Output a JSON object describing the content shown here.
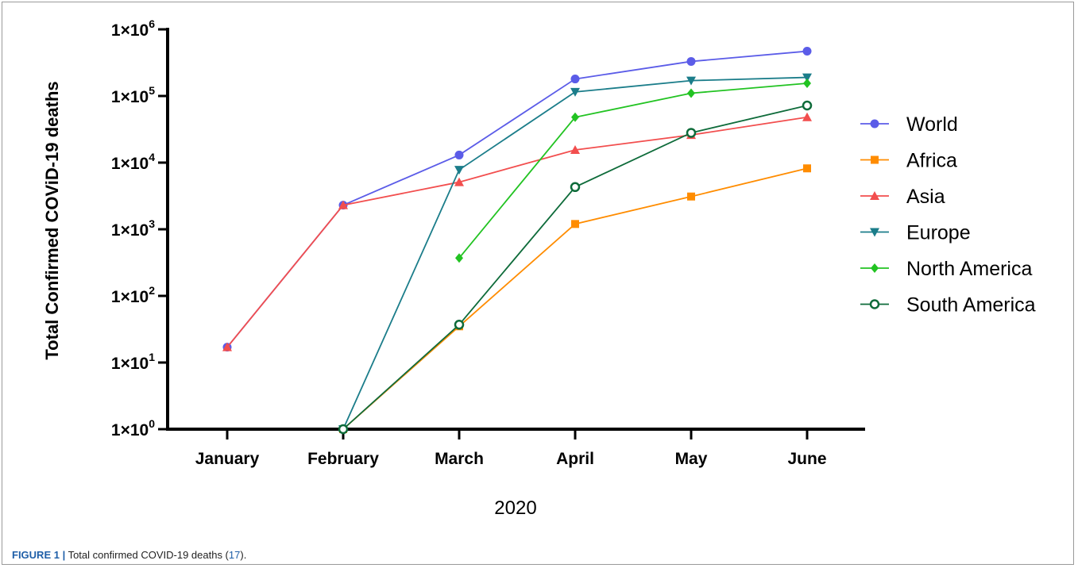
{
  "caption": {
    "label": "FIGURE 1 |",
    "text_before": " Total confirmed COVID-19 deaths (",
    "reference": "17",
    "text_after": ")."
  },
  "chart_data": {
    "type": "line",
    "title": "",
    "xlabel": "2020",
    "ylabel": "Total Confirmed COViD-19 deaths",
    "y_scale": "log",
    "ylim": [
      1,
      1000000
    ],
    "y_ticks": [
      {
        "value": 1,
        "base": "1×10",
        "exp": "0"
      },
      {
        "value": 10,
        "base": "1×10",
        "exp": "1"
      },
      {
        "value": 100,
        "base": "1×10",
        "exp": "2"
      },
      {
        "value": 1000,
        "base": "1×10",
        "exp": "3"
      },
      {
        "value": 10000,
        "base": "1×10",
        "exp": "4"
      },
      {
        "value": 100000,
        "base": "1×10",
        "exp": "5"
      },
      {
        "value": 1000000,
        "base": "1×10",
        "exp": "6"
      }
    ],
    "categories": [
      "January",
      "February",
      "March",
      "April",
      "May",
      "June"
    ],
    "legend_position": "right",
    "grid": false,
    "series": [
      {
        "name": "World",
        "color": "#5b5ce8",
        "marker": "circle",
        "values": [
          17,
          2300,
          13000,
          180000,
          330000,
          470000
        ]
      },
      {
        "name": "Africa",
        "color": "#ff8c00",
        "marker": "square",
        "values": [
          null,
          1,
          35,
          1200,
          3100,
          8200
        ]
      },
      {
        "name": "Asia",
        "color": "#f24e4e",
        "marker": "triangle-up",
        "values": [
          17,
          2300,
          5100,
          15500,
          26000,
          48000
        ]
      },
      {
        "name": "Europe",
        "color": "#1b7d8a",
        "marker": "triangle-down",
        "values": [
          null,
          1,
          7800,
          115000,
          170000,
          190000
        ]
      },
      {
        "name": "North America",
        "color": "#22c322",
        "marker": "diamond",
        "values": [
          null,
          null,
          370,
          48000,
          110000,
          155000
        ]
      },
      {
        "name": "South America",
        "color": "#0e6b3a",
        "marker": "open-circle",
        "values": [
          null,
          1,
          37,
          4300,
          28000,
          72000
        ]
      }
    ]
  }
}
